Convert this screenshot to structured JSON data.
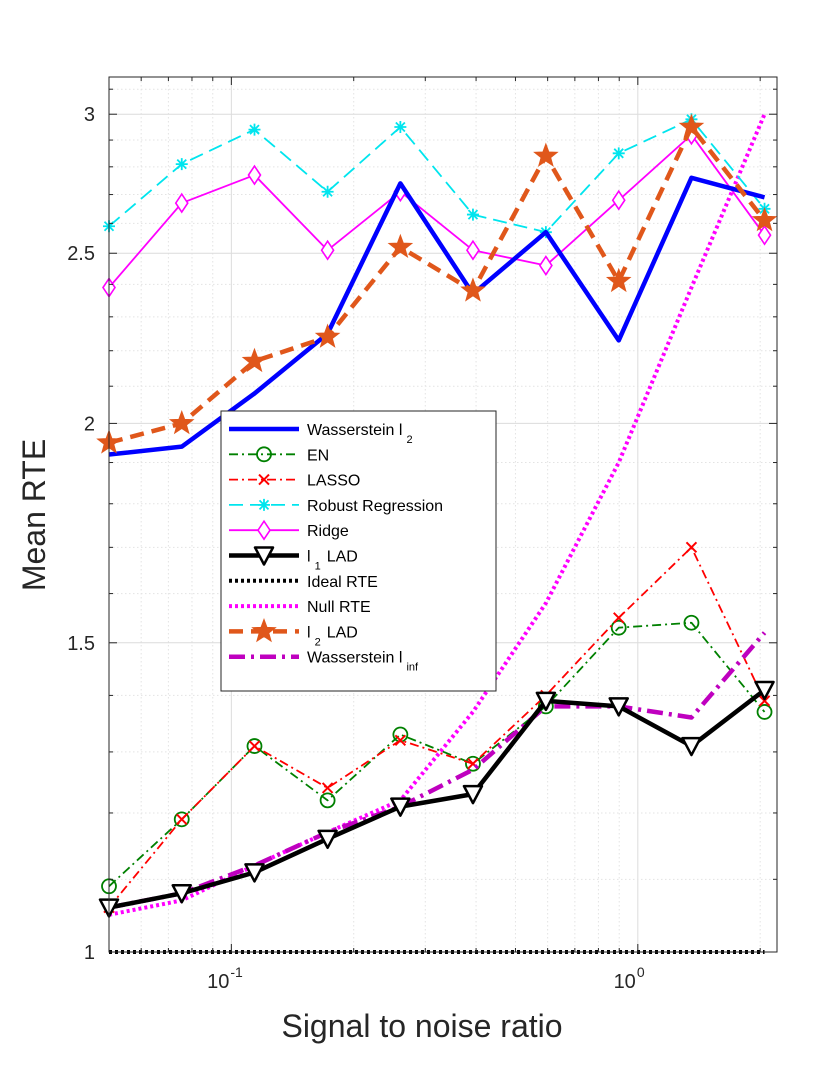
{
  "chart_data": {
    "type": "line",
    "xscale": "log",
    "yscale": "log",
    "xlabel": "Signal to noise ratio",
    "ylabel": "Mean RTE",
    "xlim": [
      0.05,
      2.2
    ],
    "ylim": [
      1.0,
      3.15
    ],
    "x": [
      0.05,
      0.0755,
      0.114,
      0.1725,
      0.2605,
      0.393,
      0.594,
      0.8975,
      1.355,
      2.05
    ],
    "xticks": [
      {
        "value": 0.1,
        "base": "10",
        "exp": "-1"
      },
      {
        "value": 1.0,
        "base": "10",
        "exp": "0"
      }
    ],
    "yticks": [
      {
        "value": 1.0,
        "label": "1"
      },
      {
        "value": 1.5,
        "label": "1.5"
      },
      {
        "value": 2.0,
        "label": "2"
      },
      {
        "value": 2.5,
        "label": "2.5"
      },
      {
        "value": 3.0,
        "label": "3"
      }
    ],
    "grid": true,
    "legend_position": "center-left",
    "series": [
      {
        "id": "wass-l2",
        "name": "Wasserstein l",
        "sub": "2",
        "color": "#0000ff",
        "width": 4.5,
        "dash": "",
        "marker": "none",
        "values": [
          1.92,
          1.94,
          2.08,
          2.25,
          2.74,
          2.37,
          2.57,
          2.23,
          2.76,
          2.69
        ]
      },
      {
        "id": "en",
        "name": "EN",
        "sub": "",
        "color": "#008000",
        "width": 1.8,
        "dash": "9 4 2 4",
        "marker": "circle",
        "values": [
          1.09,
          1.19,
          1.31,
          1.22,
          1.33,
          1.28,
          1.38,
          1.53,
          1.54,
          1.37
        ]
      },
      {
        "id": "lasso",
        "name": "LASSO",
        "sub": "",
        "color": "#ff0000",
        "width": 1.8,
        "dash": "9 4 2 4",
        "marker": "x",
        "values": [
          1.06,
          1.19,
          1.31,
          1.24,
          1.32,
          1.28,
          1.4,
          1.55,
          1.7,
          1.39
        ]
      },
      {
        "id": "robust",
        "name": "Robust Regression",
        "sub": "",
        "color": "#00e5ee",
        "width": 1.8,
        "dash": "14 7",
        "marker": "asterisk",
        "values": [
          2.59,
          2.81,
          2.94,
          2.71,
          2.95,
          2.63,
          2.57,
          2.85,
          2.98,
          2.65
        ]
      },
      {
        "id": "ridge",
        "name": "Ridge",
        "sub": "",
        "color": "#ff00ff",
        "width": 1.8,
        "dash": "",
        "marker": "diamond",
        "values": [
          2.39,
          2.67,
          2.77,
          2.51,
          2.71,
          2.51,
          2.46,
          2.68,
          2.92,
          2.56
        ]
      },
      {
        "id": "l1-lad",
        "name": "l",
        "sub": "1",
        "suffix": "LAD",
        "color": "#000000",
        "width": 4.5,
        "dash": "",
        "marker": "triangle-down",
        "values": [
          1.06,
          1.08,
          1.11,
          1.16,
          1.21,
          1.23,
          1.39,
          1.38,
          1.31,
          1.41
        ]
      },
      {
        "id": "ideal",
        "name": "Ideal RTE",
        "sub": "",
        "color": "#000000",
        "width": 4,
        "dash": "3 3",
        "marker": "none",
        "values": [
          1.0,
          1.0,
          1.0,
          1.0,
          1.0,
          1.0,
          1.0,
          1.0,
          1.0,
          1.0
        ]
      },
      {
        "id": "null",
        "name": "Null RTE",
        "sub": "",
        "color": "#ff00ff",
        "width": 4,
        "dash": "3 3",
        "marker": "none",
        "smooth": true,
        "values": [
          1.05,
          1.07,
          1.12,
          1.17,
          1.22,
          1.37,
          1.58,
          1.9,
          2.39,
          3.0
        ]
      },
      {
        "id": "l2-lad",
        "name": "l",
        "sub": "2",
        "suffix": "LAD",
        "color": "#e0571b",
        "width": 4.5,
        "dash": "14 8",
        "marker": "star",
        "values": [
          1.95,
          2.0,
          2.17,
          2.24,
          2.52,
          2.38,
          2.84,
          2.41,
          2.95,
          2.61
        ]
      },
      {
        "id": "wass-linf",
        "name": "Wasserstein l",
        "sub": "inf",
        "color": "#bf00bf",
        "width": 4.5,
        "dash": "16 6 3 6",
        "marker": "none",
        "values": [
          1.06,
          1.08,
          1.12,
          1.17,
          1.21,
          1.27,
          1.38,
          1.38,
          1.36,
          1.52
        ]
      }
    ]
  }
}
